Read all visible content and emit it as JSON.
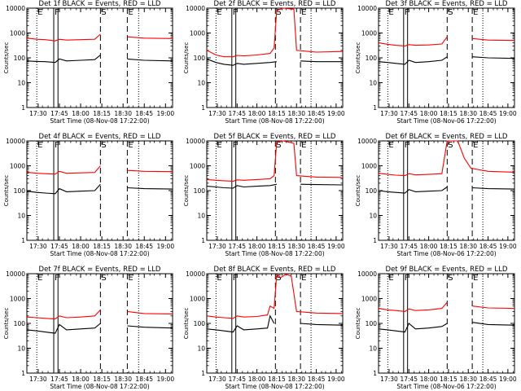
{
  "chart_data": [
    {
      "type": "line",
      "title": "Det 1f BLACK = Events, RED = LLD",
      "xlabel": "Start Time (08-Nov-08 17:22:00)",
      "ylabel": "Counts/sec",
      "ylim": [
        1,
        10000
      ],
      "yscale": "log",
      "x_ticks": [
        "17:30",
        "17:45",
        "18:00",
        "18:15",
        "18:30",
        "18:45",
        "19:00"
      ],
      "y_ticks": [
        "1",
        "10",
        "100",
        "1000",
        "10000"
      ],
      "annotations": [
        "E",
        "F",
        "S",
        "E"
      ],
      "series": [
        {
          "color": "#000000",
          "x": [
            "17:22",
            "17:29",
            "17:35",
            "17:42",
            "17:45",
            "17:50",
            "18:00",
            "18:10",
            "18:14",
            "18:20",
            "18:30",
            "18:33",
            "18:45",
            "19:05"
          ],
          "values": [
            75,
            72,
            70,
            65,
            90,
            75,
            80,
            85,
            130,
            null,
            null,
            90,
            80,
            75
          ]
        },
        {
          "color": "#ff0000",
          "x": [
            "17:22",
            "17:29",
            "17:35",
            "17:42",
            "17:45",
            "17:50",
            "18:00",
            "18:10",
            "18:14",
            "18:20",
            "18:30",
            "18:33",
            "18:45",
            "19:05"
          ],
          "values": [
            620,
            560,
            540,
            480,
            560,
            520,
            540,
            560,
            900,
            null,
            null,
            700,
            620,
            600
          ]
        }
      ]
    },
    {
      "type": "line",
      "title": "Det 2f BLACK = Events, RED = LLD",
      "xlabel": "Start Time (08-Nov-08 17:22:00)",
      "ylabel": "Counts/sec",
      "ylim": [
        1,
        10000
      ],
      "yscale": "log",
      "x_ticks": [
        "17:30",
        "17:45",
        "18:00",
        "18:15",
        "18:30",
        "18:45",
        "19:00"
      ],
      "y_ticks": [
        "1",
        "10",
        "100",
        "1000",
        "10000"
      ],
      "annotations": [
        "E",
        "F",
        "S",
        "E"
      ],
      "series": [
        {
          "color": "#000000",
          "x": [
            "17:22",
            "17:29",
            "17:35",
            "17:42",
            "17:45",
            "17:50",
            "18:00",
            "18:10",
            "18:15",
            "18:20",
            "18:28",
            "18:33",
            "18:45",
            "19:05"
          ],
          "values": [
            90,
            65,
            55,
            50,
            60,
            55,
            60,
            65,
            70,
            null,
            null,
            75,
            70,
            70
          ]
        },
        {
          "color": "#ff0000",
          "x": [
            "17:22",
            "17:29",
            "17:35",
            "17:42",
            "17:45",
            "17:50",
            "18:00",
            "18:10",
            "18:13",
            "18:15",
            "18:20",
            "18:28",
            "18:30",
            "18:45",
            "19:05"
          ],
          "values": [
            200,
            130,
            110,
            110,
            125,
            120,
            130,
            150,
            250,
            8000,
            11000,
            9000,
            200,
            170,
            180
          ]
        }
      ]
    },
    {
      "type": "line",
      "title": "Det 3f BLACK = Events, RED = LLD",
      "xlabel": "Start Time (08-Nov-06 17:22:00)",
      "ylabel": "Counts/sec",
      "ylim": [
        1,
        10000
      ],
      "yscale": "log",
      "x_ticks": [
        "17:30",
        "17:45",
        "18:00",
        "18:15",
        "18:30",
        "18:45",
        "19:00"
      ],
      "y_ticks": [
        "1",
        "10",
        "100",
        "1000",
        "10000"
      ],
      "annotations": [
        "E",
        "F",
        "S",
        "E"
      ],
      "series": [
        {
          "color": "#000000",
          "x": [
            "17:22",
            "17:29",
            "17:35",
            "17:42",
            "17:45",
            "17:50",
            "18:00",
            "18:10",
            "18:14",
            "18:20",
            "18:30",
            "18:33",
            "18:45",
            "19:05"
          ],
          "values": [
            70,
            65,
            60,
            55,
            80,
            65,
            70,
            80,
            110,
            null,
            null,
            110,
            100,
            95
          ]
        },
        {
          "color": "#ff0000",
          "x": [
            "17:22",
            "17:29",
            "17:35",
            "17:42",
            "17:45",
            "17:50",
            "18:00",
            "18:10",
            "18:14",
            "18:20",
            "18:30",
            "18:33",
            "18:45",
            "19:05"
          ],
          "values": [
            400,
            350,
            320,
            300,
            340,
            320,
            330,
            360,
            700,
            null,
            null,
            600,
            520,
            500
          ]
        }
      ]
    },
    {
      "type": "line",
      "title": "Det 4f BLACK = Events, RED = LLD",
      "xlabel": "Start Time (08-Nov-08 17:22:00)",
      "ylabel": "Counts/sec",
      "ylim": [
        1,
        10000
      ],
      "yscale": "log",
      "x_ticks": [
        "17:30",
        "17:45",
        "18:00",
        "18:15",
        "18:30",
        "18:45",
        "19:00"
      ],
      "y_ticks": [
        "1",
        "10",
        "100",
        "1000",
        "10000"
      ],
      "annotations": [
        "E",
        "F",
        "S",
        "E"
      ],
      "series": [
        {
          "color": "#000000",
          "x": [
            "17:22",
            "17:29",
            "17:35",
            "17:42",
            "17:45",
            "17:50",
            "18:00",
            "18:10",
            "18:14",
            "18:20",
            "18:30",
            "18:33",
            "18:45",
            "19:05"
          ],
          "values": [
            95,
            85,
            80,
            75,
            120,
            90,
            95,
            100,
            180,
            null,
            null,
            130,
            120,
            115
          ]
        },
        {
          "color": "#ff0000",
          "x": [
            "17:22",
            "17:29",
            "17:35",
            "17:42",
            "17:45",
            "17:50",
            "18:00",
            "18:10",
            "18:14",
            "18:20",
            "18:30",
            "18:33",
            "18:45",
            "19:05"
          ],
          "values": [
            550,
            500,
            480,
            460,
            600,
            500,
            520,
            540,
            1000,
            null,
            null,
            650,
            600,
            580
          ]
        }
      ]
    },
    {
      "type": "line",
      "title": "Det 5f BLACK = Events, RED = LLD",
      "xlabel": "Start Time (08-Nov-08 17:22:00)",
      "ylabel": "Counts/sec",
      "ylim": [
        1,
        10000
      ],
      "yscale": "log",
      "x_ticks": [
        "17:30",
        "17:45",
        "18:00",
        "18:15",
        "18:30",
        "18:45",
        "19:00"
      ],
      "y_ticks": [
        "1",
        "10",
        "100",
        "1000",
        "10000"
      ],
      "annotations": [
        "E",
        "F",
        "S",
        "E"
      ],
      "series": [
        {
          "color": "#000000",
          "x": [
            "17:22",
            "17:29",
            "17:35",
            "17:42",
            "17:45",
            "17:50",
            "18:00",
            "18:10",
            "18:15",
            "18:20",
            "18:28",
            "18:33",
            "18:45",
            "19:05"
          ],
          "values": [
            150,
            140,
            130,
            125,
            160,
            140,
            150,
            160,
            180,
            null,
            null,
            180,
            175,
            170
          ]
        },
        {
          "color": "#ff0000",
          "x": [
            "17:22",
            "17:29",
            "17:35",
            "17:42",
            "17:45",
            "17:50",
            "18:00",
            "18:10",
            "18:13",
            "18:15",
            "18:20",
            "18:28",
            "18:30",
            "18:45",
            "19:05"
          ],
          "values": [
            280,
            260,
            250,
            240,
            270,
            260,
            280,
            300,
            400,
            9000,
            11000,
            8000,
            400,
            350,
            340
          ]
        }
      ]
    },
    {
      "type": "line",
      "title": "Det 6f BLACK = Events, RED = LLD",
      "xlabel": "Start Time (08-Nov-06 17:22:00)",
      "ylabel": "Counts/sec",
      "ylim": [
        1,
        10000
      ],
      "yscale": "log",
      "x_ticks": [
        "17:30",
        "17:45",
        "18:00",
        "18:15",
        "18:30",
        "18:45",
        "19:00"
      ],
      "y_ticks": [
        "1",
        "10",
        "100",
        "1000",
        "10000"
      ],
      "annotations": [
        "E",
        "F",
        "S",
        "E"
      ],
      "series": [
        {
          "color": "#000000",
          "x": [
            "17:22",
            "17:29",
            "17:35",
            "17:42",
            "17:45",
            "17:50",
            "18:00",
            "18:10",
            "18:14",
            "18:20",
            "18:30",
            "18:33",
            "18:45",
            "19:05"
          ],
          "values": [
            100,
            90,
            85,
            80,
            110,
            90,
            95,
            100,
            140,
            null,
            null,
            130,
            120,
            115
          ]
        },
        {
          "color": "#ff0000",
          "x": [
            "17:22",
            "17:29",
            "17:35",
            "17:42",
            "17:45",
            "17:50",
            "18:00",
            "18:10",
            "18:14",
            "18:18",
            "18:22",
            "18:27",
            "18:32",
            "18:45",
            "19:05"
          ],
          "values": [
            500,
            450,
            420,
            400,
            480,
            430,
            450,
            480,
            10000,
            11000,
            10500,
            2000,
            800,
            600,
            550
          ]
        }
      ]
    },
    {
      "type": "line",
      "title": "Det 7f BLACK = Events, RED = LLD",
      "xlabel": "Start Time (08-Nov-08 17:22:00)",
      "ylabel": "Counts/sec",
      "ylim": [
        1,
        10000
      ],
      "yscale": "log",
      "x_ticks": [
        "17:30",
        "17:45",
        "18:00",
        "18:15",
        "18:30",
        "18:45",
        "19:00"
      ],
      "y_ticks": [
        "1",
        "10",
        "100",
        "1000",
        "10000"
      ],
      "annotations": [
        "E",
        "F",
        "S",
        "E"
      ],
      "series": [
        {
          "color": "#000000",
          "x": [
            "17:22",
            "17:29",
            "17:35",
            "17:42",
            "17:45",
            "17:50",
            "18:00",
            "18:10",
            "18:14",
            "18:20",
            "18:30",
            "18:33",
            "18:45",
            "19:05"
          ],
          "values": [
            55,
            50,
            45,
            40,
            90,
            55,
            60,
            65,
            100,
            null,
            null,
            80,
            70,
            65
          ]
        },
        {
          "color": "#ff0000",
          "x": [
            "17:22",
            "17:29",
            "17:35",
            "17:42",
            "17:45",
            "17:50",
            "18:00",
            "18:10",
            "18:14",
            "18:20",
            "18:30",
            "18:33",
            "18:45",
            "19:05"
          ],
          "values": [
            180,
            170,
            160,
            150,
            200,
            170,
            180,
            200,
            350,
            null,
            null,
            300,
            250,
            240
          ]
        }
      ]
    },
    {
      "type": "line",
      "title": "Det 8f BLACK = Events, RED = LLD",
      "xlabel": "Start Time (08-Nov-08 17:22:00)",
      "ylabel": "Counts/sec",
      "ylim": [
        1,
        10000
      ],
      "yscale": "log",
      "x_ticks": [
        "17:30",
        "17:45",
        "18:00",
        "18:15",
        "18:30",
        "18:45",
        "19:00"
      ],
      "y_ticks": [
        "1",
        "10",
        "100",
        "1000",
        "10000"
      ],
      "annotations": [
        "E",
        "F",
        "S",
        "E"
      ],
      "series": [
        {
          "color": "#000000",
          "x": [
            "17:22",
            "17:29",
            "17:35",
            "17:42",
            "17:45",
            "17:50",
            "18:00",
            "18:08",
            "18:10",
            "18:13",
            "18:20",
            "18:28",
            "18:33",
            "18:45",
            "19:05"
          ],
          "values": [
            60,
            55,
            50,
            45,
            80,
            55,
            60,
            65,
            200,
            100,
            null,
            null,
            100,
            90,
            85
          ]
        },
        {
          "color": "#ff0000",
          "x": [
            "17:22",
            "17:29",
            "17:35",
            "17:42",
            "17:45",
            "17:50",
            "18:00",
            "18:08",
            "18:10",
            "18:13",
            "18:15",
            "18:18",
            "18:22",
            "18:26",
            "18:30",
            "18:45",
            "19:05"
          ],
          "values": [
            200,
            180,
            170,
            160,
            200,
            180,
            190,
            220,
            500,
            400,
            9000,
            7000,
            9500,
            8000,
            300,
            260,
            250
          ]
        }
      ]
    },
    {
      "type": "line",
      "title": "Det 9f BLACK = Events, RED = LLD",
      "xlabel": "Start Time (08-Nov-06 17:22:00)",
      "ylabel": "Counts/sec",
      "ylim": [
        1,
        10000
      ],
      "yscale": "log",
      "x_ticks": [
        "17:30",
        "17:45",
        "18:00",
        "18:15",
        "18:30",
        "18:45",
        "19:00"
      ],
      "y_ticks": [
        "1",
        "10",
        "100",
        "1000",
        "10000"
      ],
      "annotations": [
        "E",
        "F",
        "S",
        "E"
      ],
      "series": [
        {
          "color": "#000000",
          "x": [
            "17:22",
            "17:29",
            "17:35",
            "17:42",
            "17:45",
            "17:50",
            "18:00",
            "18:10",
            "18:14",
            "18:20",
            "18:30",
            "18:33",
            "18:45",
            "19:05"
          ],
          "values": [
            60,
            55,
            50,
            45,
            100,
            60,
            65,
            75,
            100,
            null,
            null,
            110,
            90,
            85
          ]
        },
        {
          "color": "#ff0000",
          "x": [
            "17:22",
            "17:29",
            "17:35",
            "17:42",
            "17:45",
            "17:50",
            "18:00",
            "18:10",
            "18:14",
            "18:20",
            "18:30",
            "18:33",
            "18:45",
            "19:05"
          ],
          "values": [
            400,
            350,
            330,
            300,
            380,
            330,
            350,
            400,
            700,
            null,
            null,
            500,
            420,
            400
          ]
        }
      ]
    }
  ]
}
